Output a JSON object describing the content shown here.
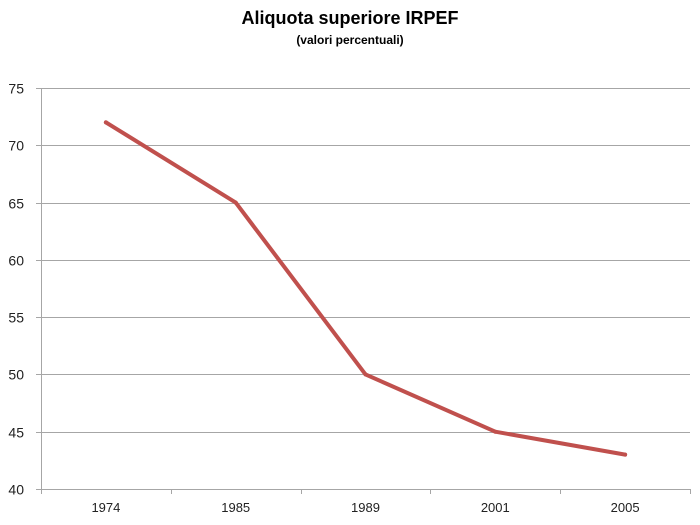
{
  "chart_data": {
    "type": "line",
    "title": "Aliquota superiore IRPEF",
    "subtitle": "(valori percentuali)",
    "xlabel": "",
    "ylabel": "",
    "categories": [
      "1974",
      "1985",
      "1989",
      "2001",
      "2005"
    ],
    "series": [
      {
        "values": [
          72,
          65,
          50,
          45,
          43
        ],
        "color": "#c0504d"
      }
    ],
    "ylim": [
      40,
      75
    ],
    "yticks": [
      40,
      45,
      50,
      55,
      60,
      65,
      70,
      75
    ],
    "grid": true,
    "legend": "none",
    "gridColor": "#a6a6a6"
  }
}
